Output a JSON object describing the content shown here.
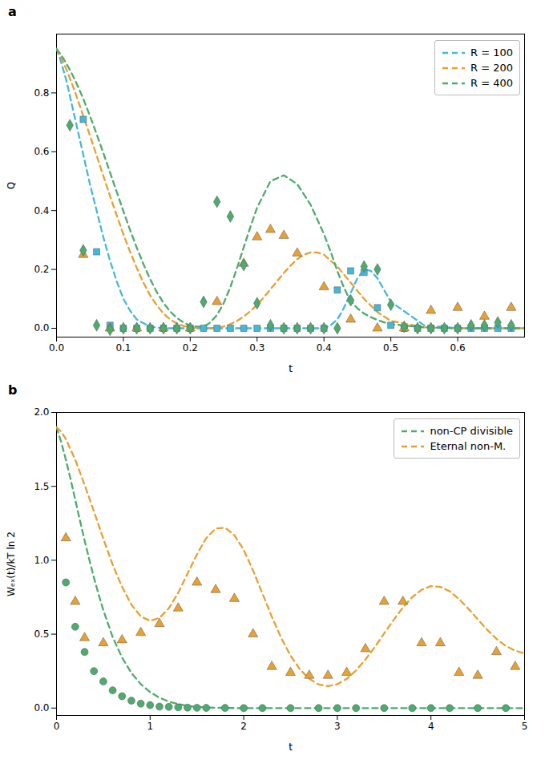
{
  "chart_data": [
    {
      "type": "line",
      "title": "a",
      "xlabel": "t",
      "ylabel": "Q",
      "xlim": [
        0.0,
        0.7
      ],
      "ylim": [
        -0.03,
        1.0
      ],
      "xticks": [
        {
          "value": 0.0,
          "label": "0.0"
        },
        0.1,
        0.2,
        0.3,
        0.4,
        0.5,
        0.6
      ],
      "yticks": [
        {
          "value": 0.0,
          "label": "0.0"
        },
        0.2,
        0.4,
        0.6,
        0.8
      ],
      "grid": false,
      "legend": "upper right",
      "series": [
        {
          "name": "R = 100",
          "type": "line",
          "line_style": "dashed",
          "color": "#45b8d8",
          "x": [
            0.0,
            0.005,
            0.01,
            0.015,
            0.02,
            0.025,
            0.03,
            0.035,
            0.04,
            0.05,
            0.06,
            0.07,
            0.08,
            0.09,
            0.1,
            0.11,
            0.12,
            0.14,
            0.16,
            0.18,
            0.2,
            0.22,
            0.24,
            0.26,
            0.28,
            0.3,
            0.35,
            0.4,
            0.41,
            0.42,
            0.43,
            0.44,
            0.45,
            0.46,
            0.47,
            0.48,
            0.49,
            0.5,
            0.55,
            0.6,
            0.65,
            0.7
          ],
          "values": [
            0.95,
            0.92,
            0.88,
            0.84,
            0.79,
            0.74,
            0.69,
            0.64,
            0.59,
            0.49,
            0.4,
            0.31,
            0.23,
            0.16,
            0.1,
            0.06,
            0.03,
            0.005,
            0.0,
            0.0,
            0.0,
            0.0,
            0.0,
            0.0,
            0.0,
            0.0,
            0.0,
            0.0,
            0.01,
            0.03,
            0.07,
            0.12,
            0.17,
            0.2,
            0.195,
            0.17,
            0.13,
            0.09,
            0.01,
            0.0,
            0.0,
            0.0
          ]
        },
        {
          "name": "R = 200",
          "type": "line",
          "line_style": "dashed",
          "color": "#e8a030",
          "x": [
            0.0,
            0.005,
            0.01,
            0.015,
            0.02,
            0.025,
            0.03,
            0.04,
            0.05,
            0.06,
            0.07,
            0.08,
            0.09,
            0.1,
            0.11,
            0.12,
            0.13,
            0.14,
            0.15,
            0.16,
            0.17,
            0.18,
            0.19,
            0.2,
            0.21,
            0.22,
            0.23,
            0.24,
            0.25,
            0.26,
            0.27,
            0.28,
            0.29,
            0.3,
            0.31,
            0.32,
            0.33,
            0.34,
            0.35,
            0.36,
            0.37,
            0.38,
            0.39,
            0.4,
            0.42,
            0.44,
            0.46,
            0.48,
            0.5,
            0.55,
            0.6,
            0.65,
            0.7
          ],
          "values": [
            0.95,
            0.93,
            0.905,
            0.878,
            0.85,
            0.82,
            0.788,
            0.722,
            0.655,
            0.587,
            0.518,
            0.45,
            0.384,
            0.32,
            0.26,
            0.205,
            0.155,
            0.112,
            0.078,
            0.05,
            0.03,
            0.016,
            0.008,
            0.003,
            0.001,
            0.0,
            0.0,
            0.002,
            0.006,
            0.014,
            0.025,
            0.04,
            0.058,
            0.08,
            0.105,
            0.133,
            0.16,
            0.188,
            0.213,
            0.235,
            0.25,
            0.258,
            0.258,
            0.25,
            0.21,
            0.155,
            0.1,
            0.055,
            0.025,
            0.003,
            0.0,
            0.0,
            0.0
          ]
        },
        {
          "name": "R = 400",
          "type": "line",
          "line_style": "dashed",
          "color": "#4dab6d",
          "x": [
            0.0,
            0.005,
            0.01,
            0.015,
            0.02,
            0.025,
            0.03,
            0.035,
            0.04,
            0.05,
            0.06,
            0.07,
            0.08,
            0.09,
            0.1,
            0.11,
            0.12,
            0.13,
            0.14,
            0.15,
            0.16,
            0.17,
            0.18,
            0.19,
            0.195,
            0.2,
            0.205,
            0.21,
            0.215,
            0.22,
            0.225,
            0.23,
            0.24,
            0.25,
            0.26,
            0.27,
            0.28,
            0.29,
            0.3,
            0.32,
            0.34,
            0.36,
            0.38,
            0.4,
            0.41,
            0.415,
            0.42,
            0.425,
            0.43,
            0.435,
            0.44,
            0.445,
            0.45,
            0.46,
            0.47,
            0.48,
            0.49,
            0.5,
            0.55,
            0.6,
            0.65,
            0.7
          ],
          "values": [
            0.95,
            0.935,
            0.918,
            0.899,
            0.878,
            0.856,
            0.832,
            0.807,
            0.78,
            0.722,
            0.66,
            0.596,
            0.53,
            0.464,
            0.398,
            0.334,
            0.274,
            0.218,
            0.167,
            0.123,
            0.086,
            0.057,
            0.035,
            0.02,
            0.014,
            0.01,
            0.007,
            0.006,
            0.006,
            0.008,
            0.012,
            0.02,
            0.045,
            0.085,
            0.14,
            0.205,
            0.275,
            0.345,
            0.41,
            0.5,
            0.52,
            0.49,
            0.42,
            0.32,
            0.26,
            0.228,
            0.195,
            0.165,
            0.138,
            0.114,
            0.095,
            0.08,
            0.068,
            0.05,
            0.038,
            0.028,
            0.02,
            0.014,
            0.003,
            0.0,
            0.0,
            0.0
          ]
        },
        {
          "type": "scatter",
          "marker": "square",
          "color": "#45b8d8",
          "x": [
            0.04,
            0.06,
            0.08,
            0.1,
            0.12,
            0.14,
            0.16,
            0.18,
            0.2,
            0.22,
            0.24,
            0.26,
            0.28,
            0.3,
            0.32,
            0.34,
            0.36,
            0.38,
            0.4,
            0.42,
            0.44,
            0.46,
            0.48,
            0.5,
            0.52,
            0.54,
            0.56,
            0.58,
            0.6,
            0.62,
            0.64,
            0.66,
            0.68
          ],
          "values": [
            0.71,
            0.26,
            0.01,
            0.0,
            0.0,
            0.0,
            0.0,
            0.0,
            0.0,
            0.0,
            0.0,
            0.0,
            0.0,
            0.0,
            0.0,
            0.0,
            0.0,
            0.0,
            0.0,
            0.13,
            0.195,
            0.19,
            0.07,
            0.01,
            0.0,
            0.0,
            0.0,
            0.0,
            0.0,
            0.0,
            0.0,
            0.0,
            0.0
          ]
        },
        {
          "type": "scatter",
          "marker": "triangle",
          "color": "#e8a030",
          "x": [
            0.04,
            0.08,
            0.12,
            0.16,
            0.2,
            0.24,
            0.28,
            0.3,
            0.32,
            0.34,
            0.36,
            0.4,
            0.44,
            0.48,
            0.52,
            0.56,
            0.6,
            0.64,
            0.68
          ],
          "values": [
            0.25,
            0.0,
            0.0,
            0.0,
            0.0,
            0.09,
            0.22,
            0.31,
            0.335,
            0.315,
            0.255,
            0.14,
            0.03,
            0.0,
            0.0,
            0.06,
            0.07,
            0.04,
            0.07
          ]
        },
        {
          "type": "scatter",
          "marker": "diamond",
          "color": "#4dab6d",
          "x": [
            0.02,
            0.04,
            0.06,
            0.08,
            0.1,
            0.12,
            0.14,
            0.16,
            0.18,
            0.2,
            0.22,
            0.24,
            0.26,
            0.28,
            0.3,
            0.32,
            0.34,
            0.36,
            0.38,
            0.4,
            0.42,
            0.44,
            0.46,
            0.48,
            0.5,
            0.52,
            0.54,
            0.56,
            0.58,
            0.6,
            0.62,
            0.64,
            0.66,
            0.68
          ],
          "values": [
            0.69,
            0.265,
            0.01,
            -0.005,
            0.0,
            0.0,
            0.0,
            0.0,
            0.0,
            0.0,
            0.09,
            0.43,
            0.38,
            0.215,
            0.085,
            0.01,
            0.0,
            0.0,
            0.0,
            0.0,
            0.0,
            0.095,
            0.21,
            0.2,
            0.08,
            0.005,
            0.0,
            0.0,
            0.0,
            0.0,
            0.01,
            0.01,
            0.02,
            0.01
          ]
        }
      ]
    },
    {
      "type": "line",
      "title": "b",
      "xlabel": "t",
      "ylabel": "Wₑₓ(t)/kT ln 2",
      "xlim": [
        0,
        5
      ],
      "ylim": [
        -0.05,
        2.0
      ],
      "xticks": [
        0,
        1,
        2,
        3,
        4,
        5
      ],
      "yticks": [
        {
          "value": 0.0,
          "label": "0.0"
        },
        0.5,
        {
          "value": 1.0,
          "label": "1.0"
        },
        1.5,
        {
          "value": 2.0,
          "label": "2.0"
        }
      ],
      "grid": false,
      "legend": "upper right",
      "series": [
        {
          "name": "non-CP divisible",
          "type": "line",
          "line_style": "dashed",
          "color": "#4dab6d",
          "x": [
            0.0,
            0.05,
            0.1,
            0.15,
            0.2,
            0.25,
            0.3,
            0.35,
            0.4,
            0.45,
            0.5,
            0.6,
            0.7,
            0.8,
            0.9,
            1.0,
            1.1,
            1.2,
            1.3,
            1.4,
            1.5,
            1.6,
            1.7,
            1.8,
            1.9,
            2.0,
            2.2,
            2.4,
            2.6,
            2.8,
            3.0,
            3.5,
            4.0,
            4.5,
            5.0
          ],
          "values": [
            1.9,
            1.8,
            1.68,
            1.55,
            1.41,
            1.27,
            1.135,
            1.005,
            0.882,
            0.768,
            0.663,
            0.48,
            0.342,
            0.238,
            0.162,
            0.108,
            0.07,
            0.044,
            0.027,
            0.015,
            0.008,
            0.004,
            0.002,
            0.001,
            0.0,
            0.0,
            0.0,
            0.0,
            0.0,
            0.0,
            0.0,
            0.0,
            0.0,
            0.0,
            0.0
          ]
        },
        {
          "name": "Eternal non-M.",
          "type": "line",
          "line_style": "dashed",
          "color": "#e8a030",
          "x": [
            0.0,
            0.05,
            0.1,
            0.2,
            0.3,
            0.4,
            0.5,
            0.6,
            0.7,
            0.8,
            0.9,
            1.0,
            1.1,
            1.2,
            1.3,
            1.4,
            1.5,
            1.6,
            1.7,
            1.8,
            1.9,
            2.0,
            2.1,
            2.2,
            2.3,
            2.4,
            2.5,
            2.6,
            2.7,
            2.8,
            2.9,
            3.0,
            3.1,
            3.2,
            3.3,
            3.4,
            3.5,
            3.6,
            3.7,
            3.8,
            3.9,
            4.0,
            4.1,
            4.2,
            4.3,
            4.4,
            4.5,
            4.6,
            4.7,
            4.8,
            4.9,
            5.0
          ],
          "values": [
            1.9,
            1.87,
            1.82,
            1.68,
            1.51,
            1.33,
            1.145,
            0.97,
            0.82,
            0.7,
            0.62,
            0.59,
            0.61,
            0.675,
            0.78,
            0.91,
            1.04,
            1.15,
            1.215,
            1.22,
            1.17,
            1.07,
            0.93,
            0.775,
            0.618,
            0.475,
            0.355,
            0.262,
            0.198,
            0.16,
            0.148,
            0.162,
            0.198,
            0.255,
            0.328,
            0.413,
            0.505,
            0.595,
            0.68,
            0.75,
            0.8,
            0.825,
            0.82,
            0.79,
            0.738,
            0.672,
            0.6,
            0.53,
            0.468,
            0.42,
            0.388,
            0.37
          ]
        },
        {
          "type": "scatter",
          "marker": "circle",
          "color": "#4dab6d",
          "x": [
            0.1,
            0.2,
            0.3,
            0.4,
            0.5,
            0.6,
            0.7,
            0.8,
            0.9,
            1.0,
            1.1,
            1.2,
            1.3,
            1.4,
            1.5,
            1.6,
            1.8,
            2.0,
            2.2,
            2.5,
            2.8,
            3.0,
            3.2,
            3.5,
            3.8,
            4.0,
            4.2,
            4.5,
            4.8
          ],
          "values": [
            0.85,
            0.55,
            0.38,
            0.25,
            0.18,
            0.12,
            0.08,
            0.05,
            0.03,
            0.02,
            0.01,
            0.008,
            0.005,
            0.003,
            0.002,
            0.001,
            0.001,
            0.0,
            0.0,
            0.0,
            0.0,
            0.0,
            0.0,
            0.0,
            0.0,
            0.0,
            0.0,
            0.0,
            0.0
          ]
        },
        {
          "type": "scatter",
          "marker": "triangle",
          "color": "#e8a030",
          "x": [
            0.1,
            0.2,
            0.3,
            0.5,
            0.7,
            0.9,
            1.1,
            1.3,
            1.5,
            1.7,
            1.9,
            2.1,
            2.3,
            2.5,
            2.7,
            2.9,
            3.1,
            3.3,
            3.5,
            3.7,
            3.9,
            4.1,
            4.3,
            4.5,
            4.7,
            4.9
          ],
          "values": [
            1.15,
            0.72,
            0.475,
            0.44,
            0.46,
            0.51,
            0.57,
            0.675,
            0.85,
            0.8,
            0.74,
            0.5,
            0.28,
            0.24,
            0.22,
            0.22,
            0.24,
            0.4,
            0.72,
            0.72,
            0.44,
            0.44,
            0.24,
            0.22,
            0.38,
            0.28
          ]
        }
      ]
    }
  ]
}
